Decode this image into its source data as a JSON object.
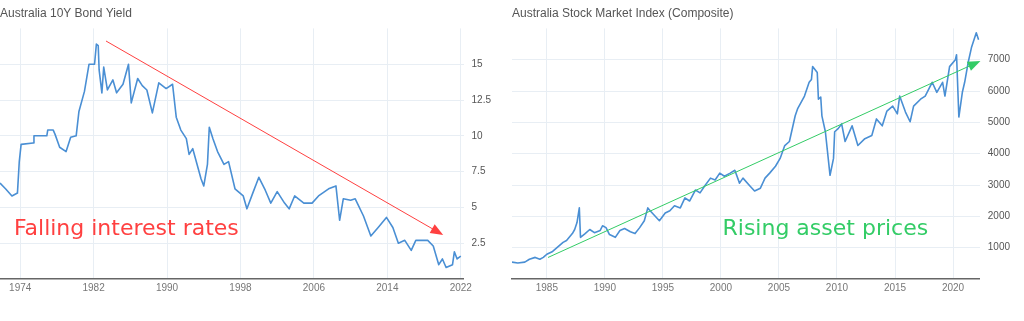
{
  "chart_data": [
    {
      "type": "line",
      "title": "Australia 10Y Bond Yield",
      "xlim": [
        1971.8,
        2022.3
      ],
      "xticks": [
        1974,
        1982,
        1990,
        1998,
        2006,
        2014,
        2022
      ],
      "ylim": [
        0,
        17.5
      ],
      "yticks": [
        2.5,
        5,
        7.5,
        10,
        12.5,
        15
      ],
      "grid": true,
      "annotations": [
        "Falling interest rates"
      ],
      "series": [
        {
          "color": "#4a8fd4",
          "x": [
            1971.8,
            1972.4,
            1973.1,
            1973.7,
            1973.9,
            1974.1,
            1975.4,
            1975.5,
            1976.9,
            1977.0,
            1977.6,
            1977.8,
            1978.3,
            1979.0,
            1979.5,
            1980.1,
            1980.4,
            1981.0,
            1981.5,
            1982.1,
            1982.3,
            1982.5,
            1982.6,
            1982.9,
            1983.1,
            1983.5,
            1984.1,
            1984.5,
            1985.2,
            1985.8,
            1986.1,
            1986.8,
            1987.3,
            1987.8,
            1988.4,
            1989.1,
            1989.9,
            1990.6,
            1991.0,
            1991.5,
            1992.1,
            1992.4,
            1992.8,
            1993.7,
            1994.0,
            1994.4,
            1994.6,
            1995.0,
            1995.5,
            1996.2,
            1996.7,
            1997.4,
            1998.3,
            1998.7,
            1999.4,
            2000.0,
            2000.7,
            2001.3,
            2002.0,
            2002.8,
            2003.3,
            2003.9,
            2004.9,
            2005.8,
            2006.5,
            2007.6,
            2008.4,
            2008.8,
            2009.2,
            2010.0,
            2010.5,
            2011.4,
            2012.2,
            2013.0,
            2013.9,
            2014.6,
            2015.2,
            2015.9,
            2016.6,
            2017.1,
            2018.4,
            2019.0,
            2019.6,
            2020.0,
            2020.4,
            2021.1,
            2021.3,
            2021.6,
            2022.0
          ],
          "values": [
            6.7,
            6.3,
            5.8,
            6.0,
            8.2,
            9.4,
            9.5,
            10.0,
            10.0,
            10.4,
            10.4,
            10.1,
            9.2,
            8.9,
            9.9,
            10.0,
            11.7,
            13.1,
            15.0,
            15.0,
            16.4,
            16.3,
            14.6,
            13.0,
            14.8,
            13.2,
            13.9,
            13.0,
            13.6,
            15.0,
            12.3,
            14.0,
            13.5,
            13.2,
            11.6,
            13.7,
            13.3,
            13.6,
            11.3,
            10.4,
            9.8,
            8.7,
            9.1,
            7.0,
            6.5,
            8.0,
            10.6,
            9.8,
            8.9,
            8.0,
            8.2,
            6.3,
            5.8,
            4.9,
            6.1,
            7.1,
            6.2,
            5.3,
            6.1,
            5.3,
            4.9,
            5.8,
            5.3,
            5.3,
            5.8,
            6.3,
            6.5,
            4.1,
            5.6,
            5.5,
            5.6,
            4.4,
            3.0,
            3.6,
            4.3,
            3.6,
            2.5,
            2.7,
            2.0,
            2.7,
            2.7,
            2.3,
            1.0,
            1.4,
            0.8,
            1.0,
            1.9,
            1.4,
            1.6
          ]
        }
      ]
    },
    {
      "type": "line",
      "title": "Australia Stock Market Index (Composite)",
      "xlim": [
        1982,
        2022.3
      ],
      "xticks": [
        1985,
        1990,
        1995,
        2000,
        2005,
        2010,
        2015,
        2020
      ],
      "ylim": [
        0,
        8000
      ],
      "yticks": [
        1000,
        2000,
        3000,
        4000,
        5000,
        6000,
        7000
      ],
      "grid": true,
      "annotations": [
        "Rising asset prices"
      ],
      "series": [
        {
          "color": "#4a8fd4",
          "x": [
            1982.0,
            1982.5,
            1983.1,
            1983.5,
            1984.0,
            1984.4,
            1984.7,
            1985.0,
            1985.5,
            1985.9,
            1986.4,
            1986.7,
            1987.2,
            1987.4,
            1987.6,
            1987.8,
            1987.9,
            1988.3,
            1988.7,
            1989.1,
            1989.6,
            1989.8,
            1990.1,
            1990.4,
            1990.9,
            1991.3,
            1991.7,
            1992.2,
            1992.6,
            1993.0,
            1993.4,
            1993.7,
            1993.9,
            1994.3,
            1994.7,
            1995.2,
            1995.6,
            1996.0,
            1996.5,
            1996.9,
            1997.3,
            1997.8,
            1998.2,
            1998.6,
            1999.1,
            1999.5,
            1999.9,
            2000.3,
            2000.8,
            2001.2,
            2001.6,
            2001.9,
            2002.5,
            2002.9,
            2003.4,
            2003.8,
            2004.2,
            2004.7,
            2005.1,
            2005.5,
            2005.9,
            2006.4,
            2006.6,
            2007.2,
            2007.6,
            2007.8,
            2007.9,
            2008.3,
            2008.4,
            2008.6,
            2008.7,
            2009.0,
            2009.4,
            2009.7,
            2009.8,
            2010.1,
            2010.4,
            2010.7,
            2011.3,
            2011.8,
            2012.4,
            2013.0,
            2013.4,
            2013.9,
            2014.3,
            2014.8,
            2015.2,
            2015.4,
            2015.9,
            2016.3,
            2016.6,
            2017.2,
            2017.6,
            2018.2,
            2018.6,
            2019.1,
            2019.3,
            2019.7,
            2020.2,
            2020.3,
            2020.5,
            2020.8,
            2021.0,
            2021.3,
            2021.6,
            2022.0,
            2022.2
          ],
          "values": [
            540,
            510,
            540,
            630,
            690,
            630,
            690,
            790,
            880,
            1010,
            1170,
            1230,
            1450,
            1580,
            1800,
            2270,
            1330,
            1450,
            1580,
            1480,
            1550,
            1700,
            1640,
            1420,
            1330,
            1550,
            1610,
            1510,
            1450,
            1640,
            1860,
            2270,
            2180,
            2020,
            1860,
            2110,
            2180,
            2340,
            2270,
            2590,
            2490,
            2840,
            2750,
            2970,
            3220,
            3160,
            3380,
            3280,
            3380,
            3470,
            3060,
            3220,
            2970,
            2810,
            2900,
            3220,
            3380,
            3600,
            3850,
            4260,
            4390,
            5210,
            5430,
            5840,
            6280,
            6370,
            6780,
            6590,
            5740,
            5810,
            5210,
            4700,
            3310,
            3850,
            4700,
            4800,
            4950,
            4390,
            4890,
            4260,
            4480,
            4580,
            5110,
            4890,
            5360,
            5520,
            5270,
            5840,
            5330,
            5020,
            5520,
            5740,
            5840,
            6280,
            5960,
            6280,
            5840,
            6780,
            7000,
            7160,
            5170,
            5960,
            6280,
            6910,
            7410,
            7860,
            7640
          ]
        }
      ]
    }
  ]
}
